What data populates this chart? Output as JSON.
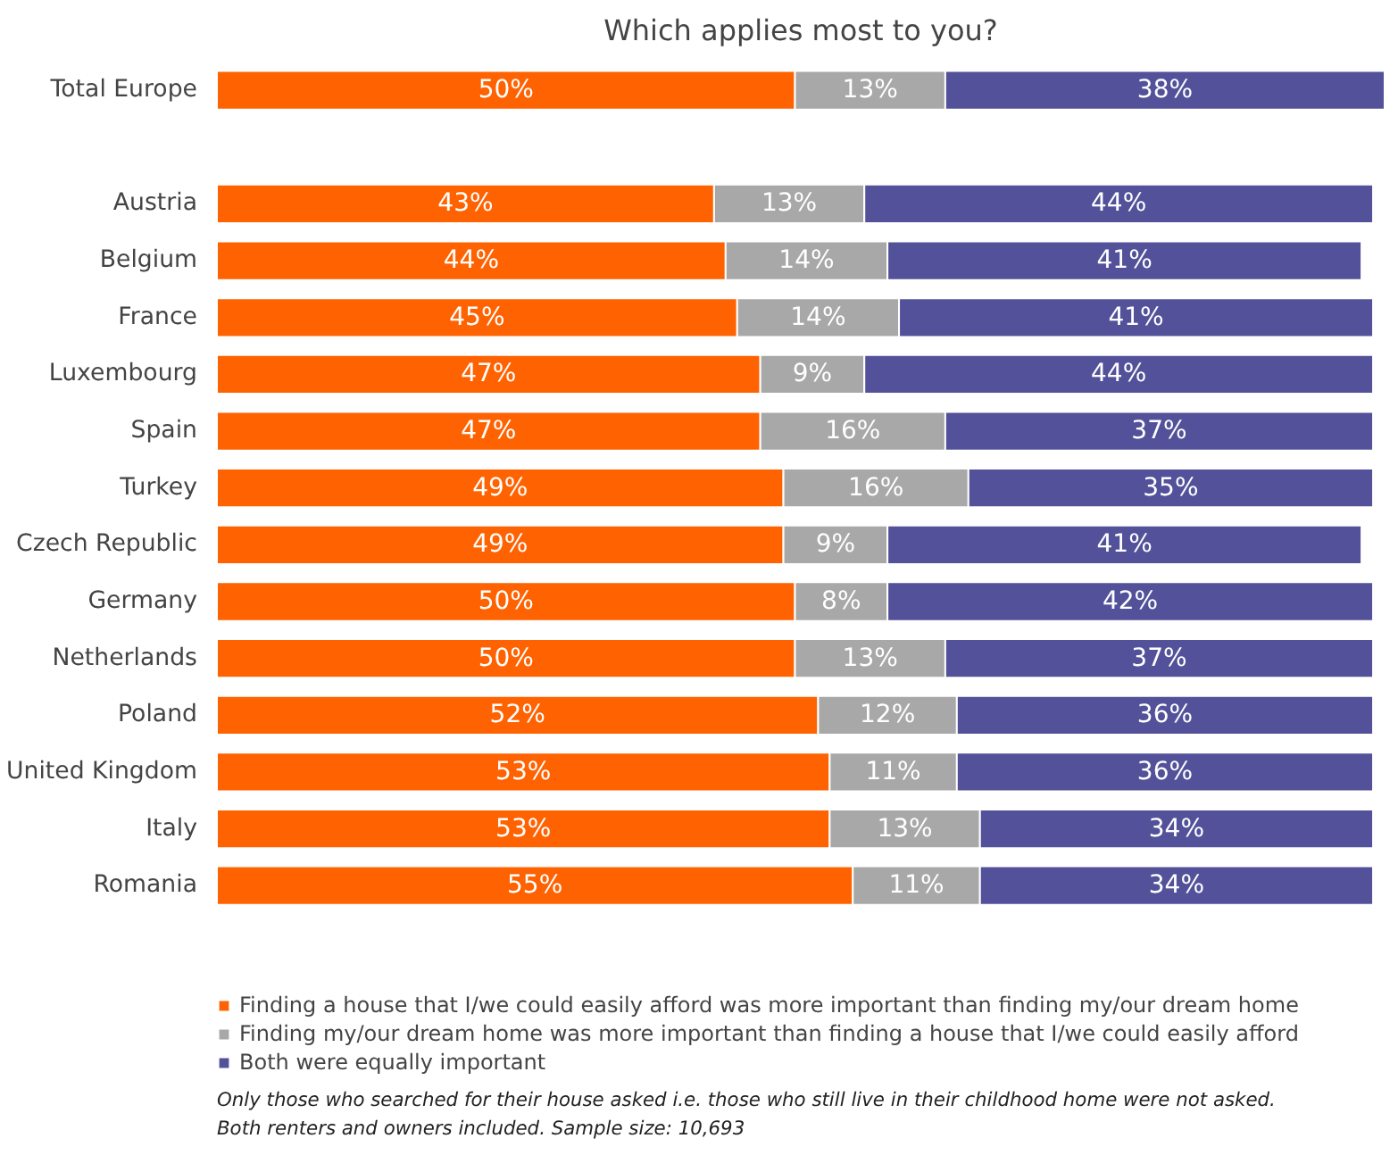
{
  "chart_data": {
    "type": "bar",
    "orientation": "horizontal",
    "stacked": true,
    "title": "Which applies most to you?",
    "categories": [
      "Total Europe",
      null,
      "Austria",
      "Belgium",
      "France",
      "Luxembourg",
      "Spain",
      "Turkey",
      "Czech Republic",
      "Germany",
      "Netherlands",
      "Poland",
      "United Kingdom",
      "Italy",
      "Romania"
    ],
    "series": [
      {
        "name": "Finding a house that I/we could easily afford was more important than finding my/our dream home",
        "color": "#ff6200",
        "values": [
          50,
          null,
          43,
          44,
          45,
          47,
          47,
          49,
          49,
          50,
          50,
          52,
          53,
          53,
          55
        ],
        "value_labels": [
          "50%",
          null,
          "43%",
          "44%",
          "45%",
          "47%",
          "47%",
          "49%",
          "49%",
          "50%",
          "50%",
          "52%",
          "53%",
          "53%",
          "55%"
        ]
      },
      {
        "name": "Finding my/our dream home was more important than finding a house that I/we could easily afford",
        "color": "#a8a8a8",
        "values": [
          13,
          null,
          13,
          14,
          14,
          9,
          16,
          16,
          9,
          8,
          13,
          12,
          11,
          13,
          11
        ],
        "value_labels": [
          "13%",
          null,
          "13%",
          "14%",
          "14%",
          "9%",
          "16%",
          "16%",
          "9%",
          "8%",
          "13%",
          "12%",
          "11%",
          "13%",
          "11%"
        ]
      },
      {
        "name": "Both were equally important",
        "color": "#525199",
        "values": [
          38,
          null,
          44,
          41,
          41,
          44,
          37,
          35,
          41,
          42,
          37,
          36,
          36,
          34,
          34
        ],
        "value_labels": [
          "38%",
          null,
          "44%",
          "41%",
          "41%",
          "44%",
          "37%",
          "35%",
          "41%",
          "42%",
          "37%",
          "36%",
          "36%",
          "34%",
          "34%"
        ]
      }
    ],
    "xlim": [
      0,
      101
    ],
    "tick_labels": "y",
    "grid": false,
    "legend": "bottom",
    "annotations": [
      "Only those who searched for their house asked i.e. those who still live in their childhood home were not asked.",
      "Both renters and owners included. Sample size: 10,693"
    ]
  }
}
